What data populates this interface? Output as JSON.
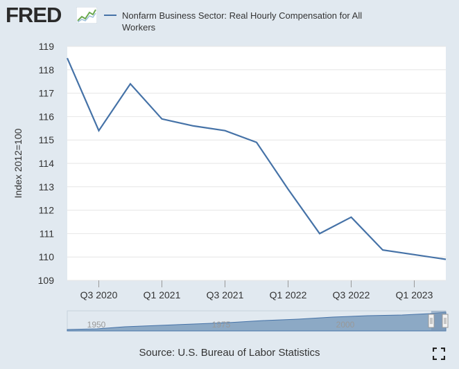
{
  "brand": {
    "name": "FRED",
    "icon": "chart-line-icon"
  },
  "legend": {
    "label": "Nonfarm Business Sector: Real Hourly Compensation for All Workers",
    "color": "#4572a7"
  },
  "chart_data": {
    "type": "line",
    "title": "",
    "xlabel": "",
    "ylabel": "Index 2012=100",
    "ylim": [
      109,
      119
    ],
    "yticks": [
      109,
      110,
      111,
      112,
      113,
      114,
      115,
      116,
      117,
      118,
      119
    ],
    "xlim": [
      "Q2 2020",
      "Q2 2023"
    ],
    "xticks": [
      "Q3 2020",
      "Q1 2021",
      "Q3 2021",
      "Q1 2022",
      "Q3 2022",
      "Q1 2023"
    ],
    "grid": true,
    "series": [
      {
        "name": "Nonfarm Business Sector: Real Hourly Compensation for All Workers",
        "color": "#4572a7",
        "x": [
          "Q2 2020",
          "Q3 2020",
          "Q4 2020",
          "Q1 2021",
          "Q2 2021",
          "Q3 2021",
          "Q4 2021",
          "Q1 2022",
          "Q2 2022",
          "Q3 2022",
          "Q4 2022",
          "Q1 2023",
          "Q2 2023"
        ],
        "values": [
          118.5,
          115.4,
          117.4,
          115.9,
          115.6,
          115.4,
          114.9,
          112.9,
          111.0,
          111.7,
          110.3,
          110.1,
          109.9
        ]
      }
    ],
    "navigator": {
      "labels": [
        "1950",
        "1975",
        "2000"
      ]
    }
  },
  "footer": {
    "source": "Source: U.S. Bureau of Labor Statistics",
    "fullscreen_icon": "fullscreen-icon"
  }
}
